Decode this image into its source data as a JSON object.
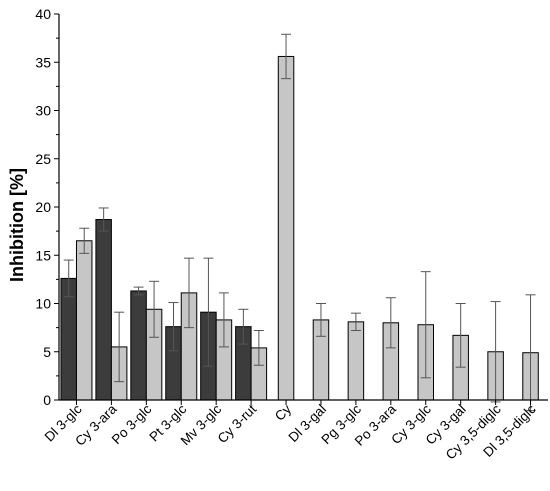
{
  "chart_data": {
    "type": "bar",
    "ylabel": "Inhibition [%]",
    "xlabel": "",
    "ylim": [
      0,
      40
    ],
    "yticks": [
      "0",
      "5",
      "10",
      "15",
      "20",
      "25",
      "30",
      "35",
      "40"
    ],
    "grid": false,
    "colors": {
      "dark": "#3c3c3c",
      "light": "#c6c6c6",
      "stroke": "#000000",
      "error": "#555555"
    },
    "categories": [
      "Dl 3-glc",
      "Cy 3-ara",
      "Po 3-glc",
      "Pt 3-glc",
      "Mv 3-glc",
      "Cy 3-rut",
      "Cy",
      "Dl 3-gal",
      "Pg 3-glc",
      "Po 3-ara",
      "Cy 3-glc",
      "Cy 3-gal",
      "Cy 3,5-diglc",
      "Dl 3,5-diglc"
    ],
    "series": [
      {
        "values": [
          12.6,
          18.7,
          11.3,
          7.6,
          9.1,
          7.6,
          null,
          null,
          null,
          null,
          null,
          null,
          null,
          null
        ],
        "errors": [
          1.9,
          1.2,
          0.4,
          2.5,
          5.6,
          1.8,
          null,
          null,
          null,
          null,
          null,
          null,
          null,
          null
        ]
      },
      {
        "values": [
          16.5,
          5.5,
          9.4,
          11.1,
          8.3,
          5.4,
          35.6,
          8.3,
          8.1,
          8.0,
          7.8,
          6.7,
          5.0,
          4.9
        ],
        "errors": [
          1.3,
          3.6,
          2.9,
          3.6,
          2.8,
          1.8,
          2.3,
          1.7,
          0.9,
          2.6,
          5.5,
          3.3,
          5.2,
          6.0
        ]
      }
    ]
  }
}
